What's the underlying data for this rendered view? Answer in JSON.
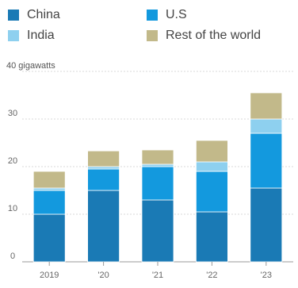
{
  "chart_data": {
    "type": "bar",
    "stacked": true,
    "categories": [
      "2019",
      "'20",
      "'21",
      "'22",
      "'23"
    ],
    "series": [
      {
        "name": "China",
        "color": "#1a7ab5",
        "values": [
          10,
          15,
          13,
          10.5,
          15.5
        ]
      },
      {
        "name": "U.S",
        "color": "#1399de",
        "values": [
          5,
          4.5,
          7,
          8.5,
          11.5
        ]
      },
      {
        "name": "India",
        "color": "#8ed0ef",
        "values": [
          0.5,
          0.5,
          0.5,
          2,
          3
        ]
      },
      {
        "name": "Rest of the world",
        "color": "#c2b98a",
        "values": [
          3.5,
          3.3,
          3,
          4.5,
          5.5
        ]
      }
    ],
    "ylim": [
      0,
      40
    ],
    "yticks": [
      0,
      10,
      20,
      30,
      40
    ],
    "ylabel": "40 gigawatts",
    "grid": true,
    "legend": "top"
  }
}
